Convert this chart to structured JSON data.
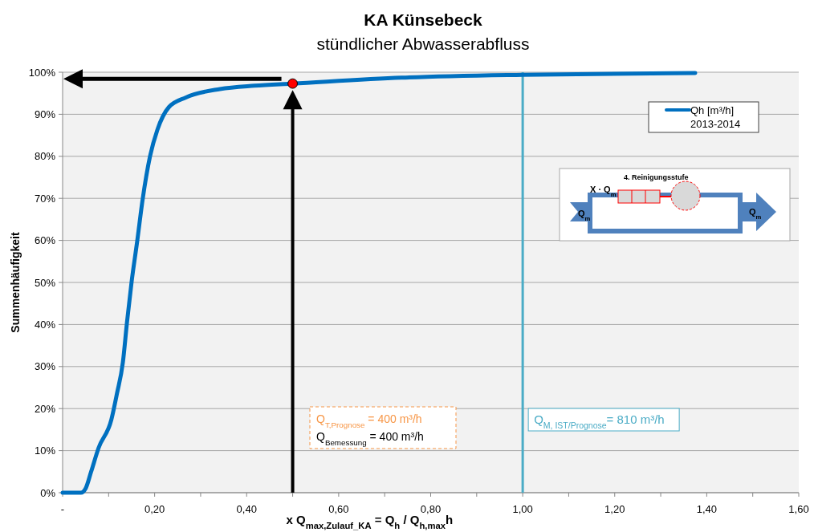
{
  "chart_data": {
    "type": "line",
    "title": "KA Künsebeck",
    "subtitle": "stündlicher Abwasserabfluss",
    "xlabel": "x Q$_{max,Zulauf_KA}$ = Q$_{h}$ / Q$_{h,max}$h",
    "ylabel": "Summenhäufigkeit",
    "xlim": [
      0,
      1.6
    ],
    "ylim": [
      0,
      100
    ],
    "xticks": [
      {
        "value": 0,
        "label": "-"
      },
      {
        "value": 0.1,
        "label": null
      },
      {
        "value": 0.2,
        "label": "0,20"
      },
      {
        "value": 0.3,
        "label": null
      },
      {
        "value": 0.4,
        "label": "0,40"
      },
      {
        "value": 0.5,
        "label": null
      },
      {
        "value": 0.6,
        "label": "0,60"
      },
      {
        "value": 0.7,
        "label": null
      },
      {
        "value": 0.8,
        "label": "0,80"
      },
      {
        "value": 0.9,
        "label": null
      },
      {
        "value": 1.0,
        "label": "1,00"
      },
      {
        "value": 1.1,
        "label": null
      },
      {
        "value": 1.2,
        "label": "1,20"
      },
      {
        "value": 1.3,
        "label": null
      },
      {
        "value": 1.4,
        "label": "1,40"
      },
      {
        "value": 1.5,
        "label": null
      },
      {
        "value": 1.6,
        "label": "1,60"
      }
    ],
    "yticks": [
      {
        "value": 0,
        "label": "0%"
      },
      {
        "value": 10,
        "label": "10%"
      },
      {
        "value": 20,
        "label": "20%"
      },
      {
        "value": 30,
        "label": "30%"
      },
      {
        "value": 40,
        "label": "40%"
      },
      {
        "value": 50,
        "label": "50%"
      },
      {
        "value": 60,
        "label": "60%"
      },
      {
        "value": 70,
        "label": "70%"
      },
      {
        "value": 80,
        "label": "80%"
      },
      {
        "value": 90,
        "label": "90%"
      },
      {
        "value": 100,
        "label": "100%"
      }
    ],
    "grid": "y",
    "legend": "top right",
    "series": [
      {
        "name": "Qh [m³/h] 2013-2014",
        "color": "#0070c0",
        "x": [
          0,
          0.04,
          0.05,
          0.062,
          0.078,
          0.106,
          0.118,
          0.131,
          0.14,
          0.15,
          0.162,
          0.174,
          0.19,
          0.206,
          0.231,
          0.268,
          0.342,
          0.417,
          0.5,
          0.737,
          1.0,
          1.375
        ],
        "values": [
          0,
          0,
          1,
          5,
          10.6,
          17.4,
          23.5,
          31,
          40.6,
          50.2,
          59.7,
          69.8,
          80,
          86.3,
          91.7,
          94,
          96,
          96.8,
          97.3,
          98.7,
          99.4,
          99.8
        ]
      },
      {
        "type": "scatter",
        "color": "#ff0000",
        "marker": "circle",
        "x": [
          0.5
        ],
        "values": [
          97.3
        ]
      }
    ],
    "ref_lines": [
      {
        "axis": "x",
        "value": 1.0,
        "color": "#4bacc6"
      }
    ],
    "annotations": [
      "Q$_{T,Prognose}$ =  400 m³/h",
      "Q$_{Bemessung}$ =  400 m³/h",
      "4. Reinigungsstufe",
      "X · Q$_{m}$",
      "Q$_{m}$",
      "Q$_{m}$",
      "Q$_{M, IST/Prognose}$= 810 m³/h"
    ]
  }
}
